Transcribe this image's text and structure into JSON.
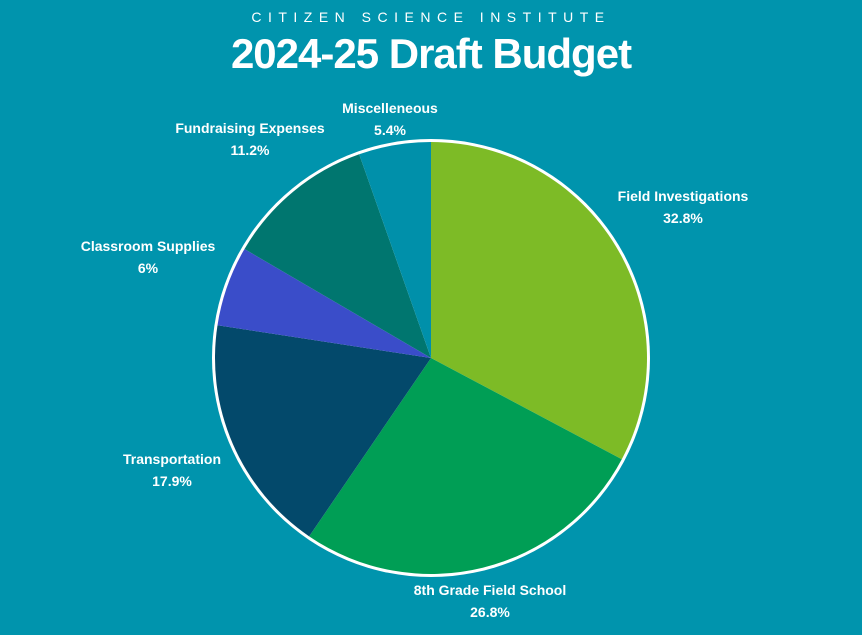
{
  "header": {
    "org": "CITIZEN SCIENCE INSTITUTE",
    "title": "2024-25 Draft Budget"
  },
  "colors": {
    "background": "#0094ad",
    "slice_border": "#ffffff"
  },
  "chart_data": {
    "type": "pie",
    "title": "2024-25 Draft Budget",
    "subtitle": "CITIZEN SCIENCE INSTITUTE",
    "start": "12 o'clock",
    "direction": "clockwise",
    "slices": [
      {
        "label": "Field Investigations",
        "value": 32.8,
        "display": "32.8%",
        "color": "#7dbb26"
      },
      {
        "label": "8th Grade Field School",
        "value": 26.8,
        "display": "26.8%",
        "color": "#009e55"
      },
      {
        "label": "Transportation",
        "value": 17.9,
        "display": "17.9%",
        "color": "#03496b"
      },
      {
        "label": "Classroom Supplies",
        "value": 6,
        "display": "6%",
        "color": "#3a4dc9"
      },
      {
        "label": "Fundraising Expenses",
        "value": 11.2,
        "display": "11.2%",
        "color": "#00766f"
      },
      {
        "label": "Miscelleneous",
        "value": 5.4,
        "display": "5.4%",
        "color": "#0090aa"
      }
    ]
  }
}
